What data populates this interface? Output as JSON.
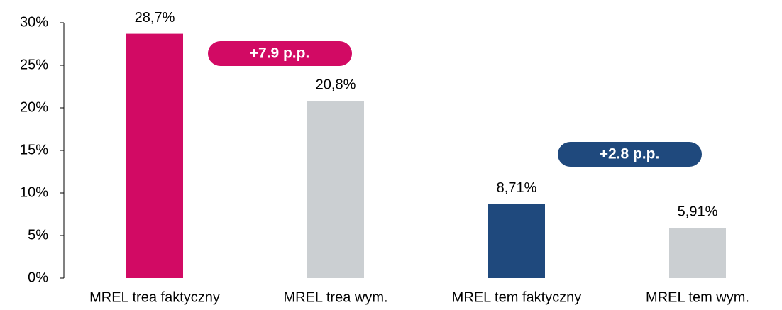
{
  "chart_data": {
    "type": "bar",
    "categories": [
      "MREL trea faktyczny",
      "MREL trea wym.",
      "MREL tem faktyczny",
      "MREL tem wym."
    ],
    "values": [
      28.7,
      20.8,
      8.71,
      5.91
    ],
    "value_labels": [
      "28,7%",
      "20,8%",
      "8,71%",
      "5,91%"
    ],
    "colors": [
      "#d20a64",
      "#cbcfd2",
      "#1f497d",
      "#cbcfd2"
    ],
    "ylim": [
      0,
      30
    ],
    "yticks": [
      {
        "value": 0,
        "label": "0%"
      },
      {
        "value": 5,
        "label": "5%"
      },
      {
        "value": 10,
        "label": "10%"
      },
      {
        "value": 15,
        "label": "15%"
      },
      {
        "value": 20,
        "label": "20%"
      },
      {
        "value": 25,
        "label": "25%"
      },
      {
        "value": 30,
        "label": "30%"
      }
    ],
    "annotations": [
      {
        "text": "+7.9 p.p.",
        "color": "#d20a64"
      },
      {
        "text": "+2.8 p.p.",
        "color": "#1f497d"
      }
    ]
  }
}
